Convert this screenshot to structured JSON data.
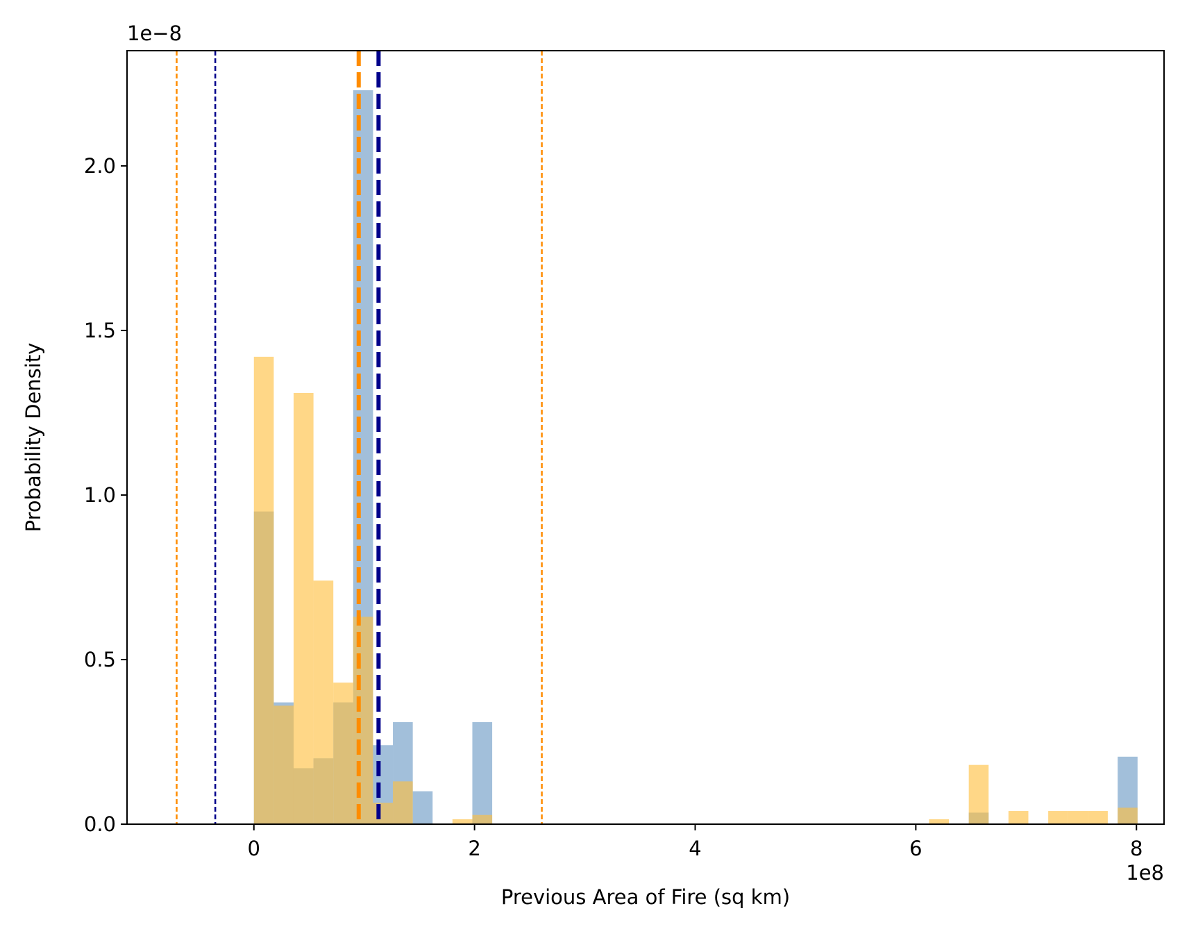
{
  "chart_data": {
    "type": "bar",
    "title": "",
    "xlabel": "Previous Area of Fire (sq km)",
    "ylabel": "Probability Density",
    "x_offset_label": "1e8",
    "y_offset_label": "1e−8",
    "x_scale": 100000000,
    "y_scale": 1e-08,
    "xlim": [
      -1.15,
      8.25
    ],
    "ylim": [
      0,
      2.35
    ],
    "xticks": [
      0,
      2,
      4,
      6,
      8
    ],
    "xtick_labels": [
      "0",
      "2",
      "4",
      "6",
      "8"
    ],
    "yticks": [
      0.0,
      0.5,
      1.0,
      1.5,
      2.0
    ],
    "ytick_labels": [
      "0.0",
      "0.5",
      "1.0",
      "1.5",
      "2.0"
    ],
    "grid": false,
    "legend": "none",
    "bin_width": 0.18,
    "series": [
      {
        "color": "#7ea6cc",
        "opacity": 0.72,
        "bars": [
          {
            "x0": 0.0,
            "density": 0.95
          },
          {
            "x0": 0.18,
            "density": 0.37
          },
          {
            "x0": 0.36,
            "density": 0.17
          },
          {
            "x0": 0.54,
            "density": 0.2
          },
          {
            "x0": 0.72,
            "density": 0.37
          },
          {
            "x0": 0.9,
            "density": 2.23
          },
          {
            "x0": 1.08,
            "density": 0.24
          },
          {
            "x0": 1.26,
            "density": 0.31
          },
          {
            "x0": 1.44,
            "density": 0.1
          },
          {
            "x0": 1.98,
            "density": 0.31
          },
          {
            "x0": 6.48,
            "density": 0.035
          },
          {
            "x0": 7.83,
            "density": 0.205
          }
        ]
      },
      {
        "color": "#ffbe3d",
        "opacity": 0.62,
        "bars": [
          {
            "x0": 0.0,
            "density": 1.42
          },
          {
            "x0": 0.18,
            "density": 0.36
          },
          {
            "x0": 0.36,
            "density": 1.31
          },
          {
            "x0": 0.54,
            "density": 0.74
          },
          {
            "x0": 0.72,
            "density": 0.43
          },
          {
            "x0": 0.9,
            "density": 0.63
          },
          {
            "x0": 1.08,
            "density": 0.065
          },
          {
            "x0": 1.26,
            "density": 0.13
          },
          {
            "x0": 1.8,
            "density": 0.015
          },
          {
            "x0": 1.98,
            "density": 0.028
          },
          {
            "x0": 6.12,
            "density": 0.015
          },
          {
            "x0": 6.48,
            "density": 0.18
          },
          {
            "x0": 6.84,
            "density": 0.04
          },
          {
            "x0": 7.2,
            "density": 0.04
          },
          {
            "x0": 7.38,
            "density": 0.04
          },
          {
            "x0": 7.56,
            "density": 0.04
          },
          {
            "x0": 7.83,
            "density": 0.05
          }
        ]
      }
    ],
    "vlines": [
      {
        "x": -0.7,
        "color": "#ff8c00",
        "style": "dotted-thin"
      },
      {
        "x": -0.35,
        "color": "#00008b",
        "style": "dotted-thin"
      },
      {
        "x": 0.95,
        "color": "#ff8c00",
        "style": "dashed-thick"
      },
      {
        "x": 1.13,
        "color": "#00008b",
        "style": "dashed-thick"
      },
      {
        "x": 2.61,
        "color": "#ff8c00",
        "style": "dotted-thin"
      }
    ]
  }
}
